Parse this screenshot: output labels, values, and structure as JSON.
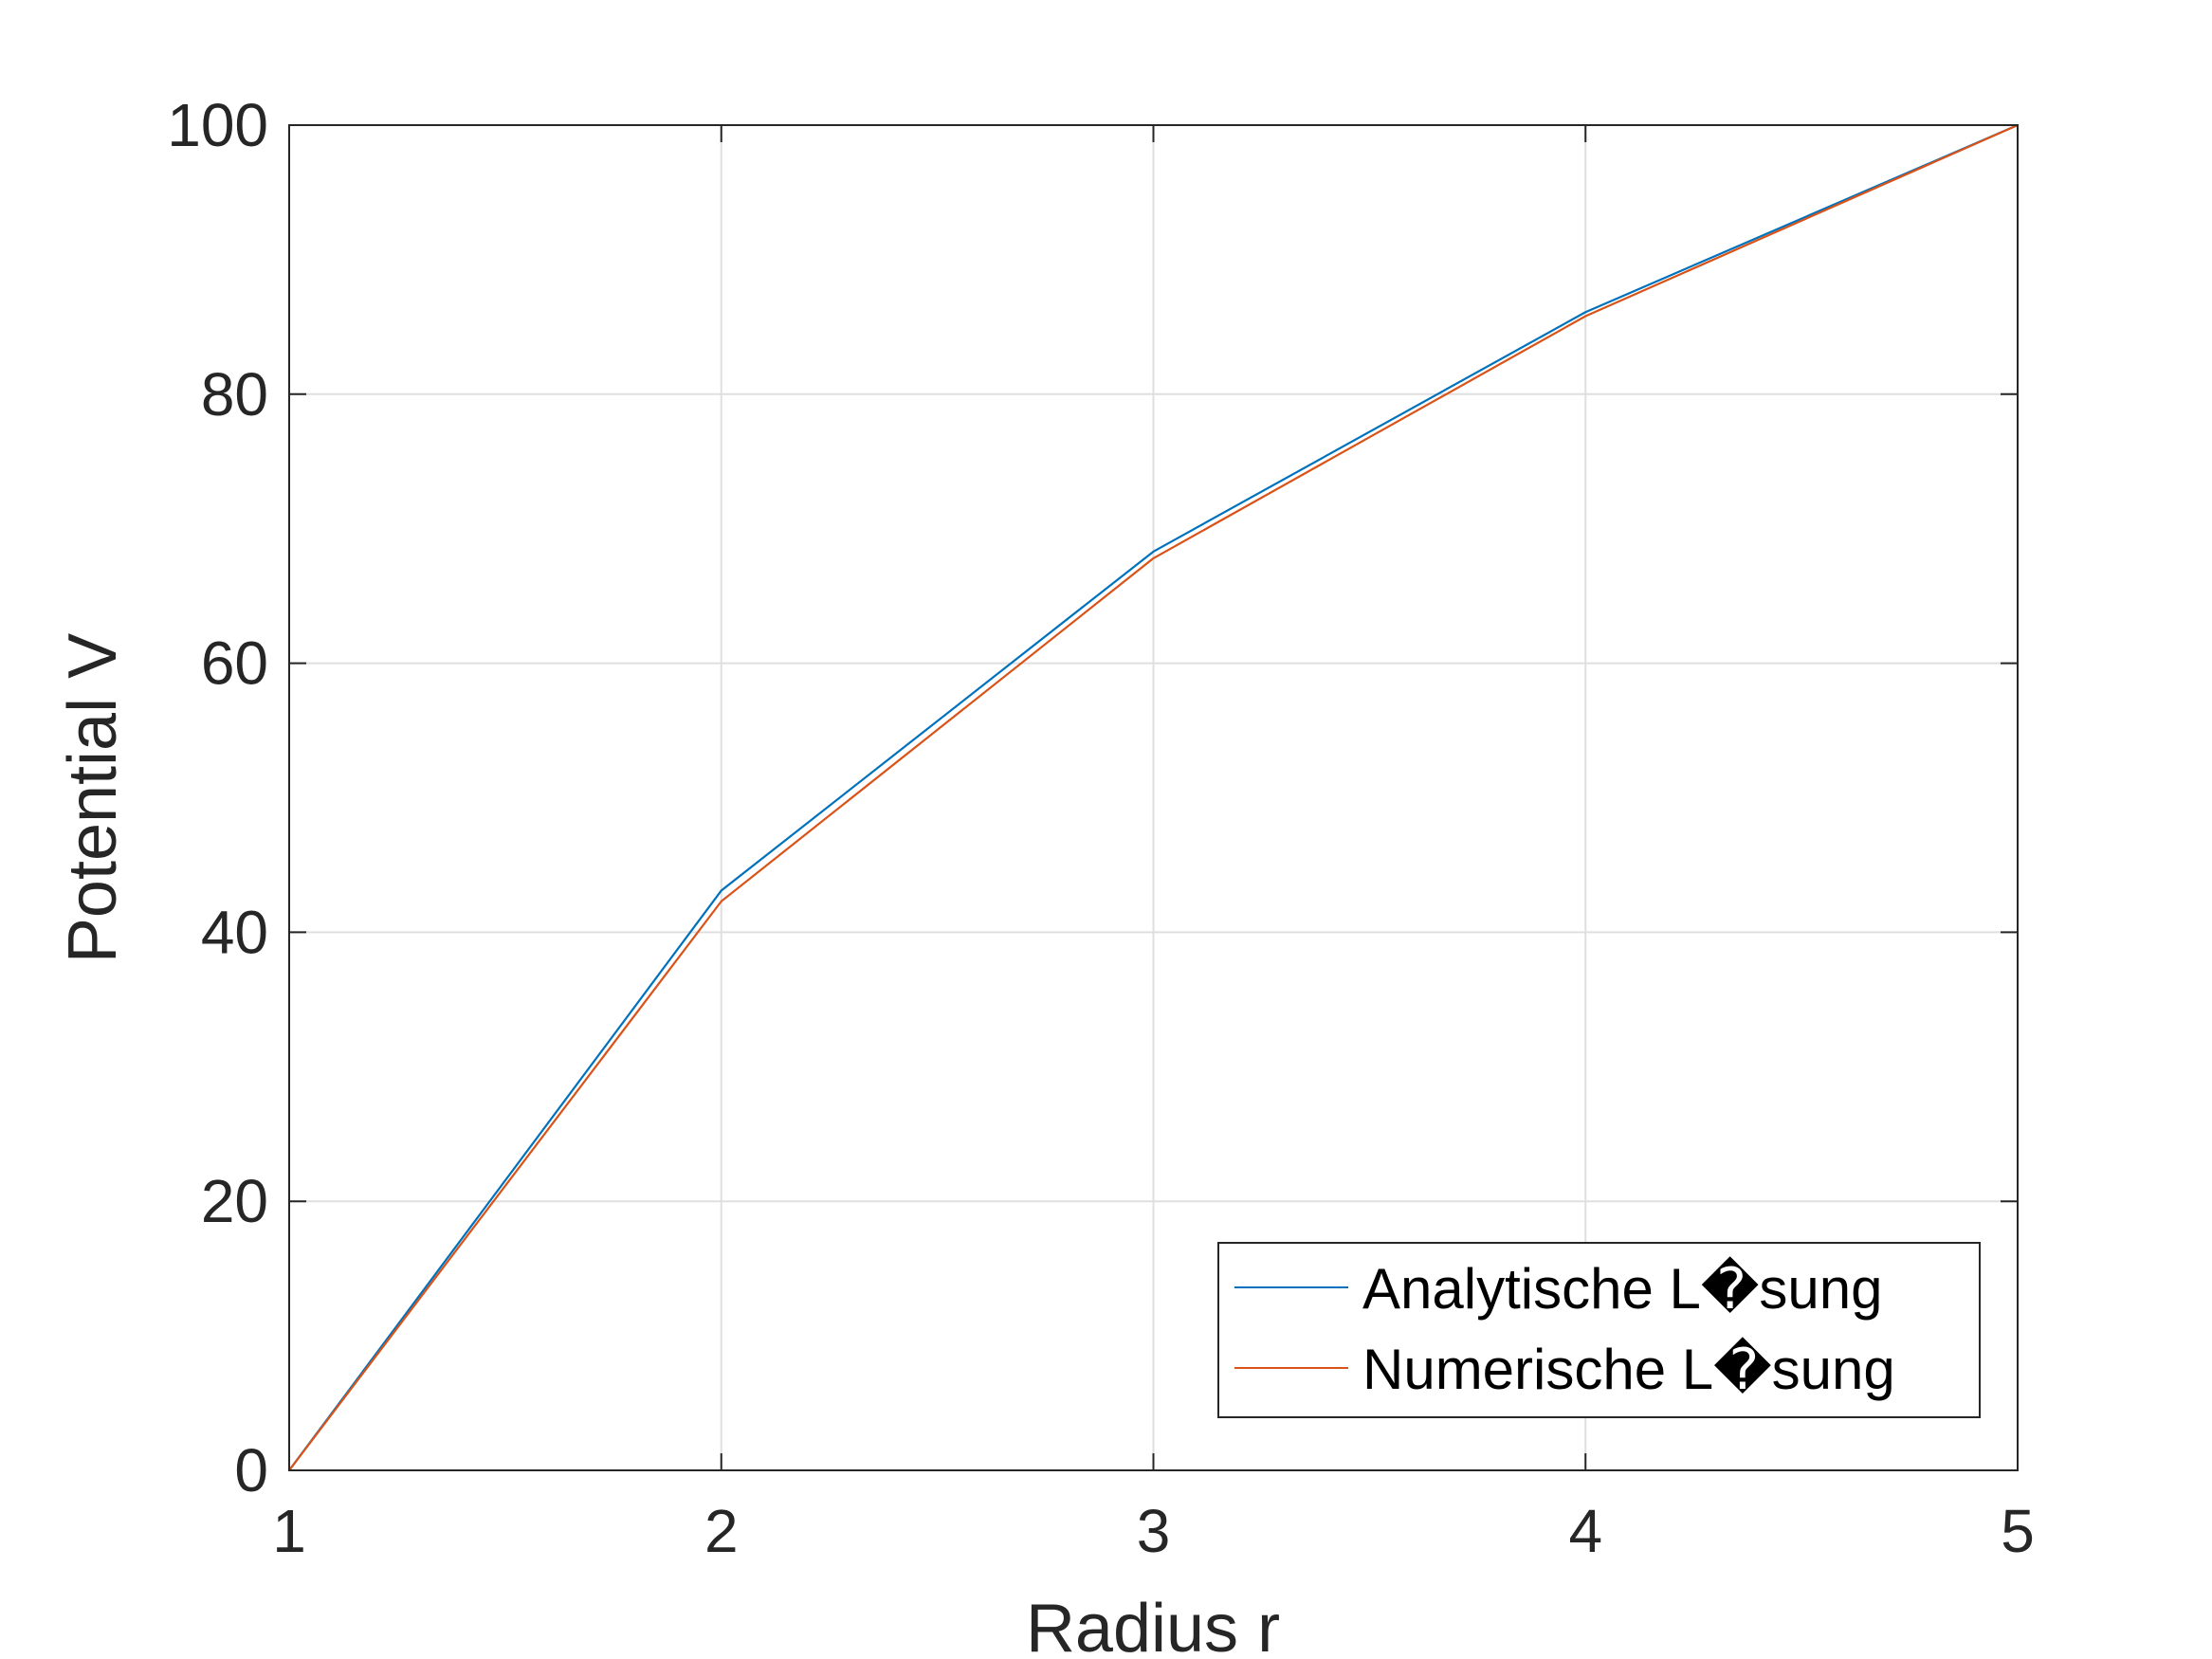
{
  "chart_data": {
    "type": "line",
    "title": "",
    "xlabel": "Radius r",
    "ylabel": "Potential V",
    "xlim": [
      1,
      5
    ],
    "ylim": [
      0,
      100
    ],
    "xticks": [
      1,
      2,
      3,
      4,
      5
    ],
    "yticks": [
      0,
      20,
      40,
      60,
      80,
      100
    ],
    "grid": true,
    "legend_position": "bottom-right",
    "series": [
      {
        "name": "Analytische L�sung",
        "color": "#0072BD",
        "x": [
          1,
          2,
          3,
          4,
          5
        ],
        "y": [
          0,
          43.1,
          68.3,
          86.1,
          100
        ]
      },
      {
        "name": "Numerische L�sung",
        "color": "#D95319",
        "x": [
          1,
          2,
          3,
          4,
          5
        ],
        "y": [
          0,
          42.3,
          67.8,
          85.8,
          100
        ]
      }
    ]
  }
}
